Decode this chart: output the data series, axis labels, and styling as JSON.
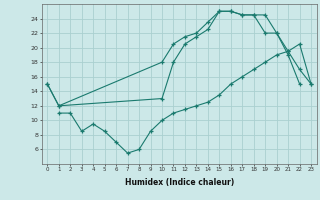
{
  "xlabel": "Humidex (Indice chaleur)",
  "line_color": "#1a7a6e",
  "bg_color": "#cce8e8",
  "grid_color": "#aad0d0",
  "xlim": [
    -0.5,
    23.5
  ],
  "ylim": [
    4,
    26
  ],
  "xticks": [
    0,
    1,
    2,
    3,
    4,
    5,
    6,
    7,
    8,
    9,
    10,
    11,
    12,
    13,
    14,
    15,
    16,
    17,
    18,
    19,
    20,
    21,
    22,
    23
  ],
  "yticks": [
    6,
    8,
    10,
    12,
    14,
    16,
    18,
    20,
    22,
    24
  ],
  "line1_x": [
    0,
    1,
    10,
    11,
    12,
    13,
    14,
    15,
    16,
    17,
    18,
    19,
    20,
    21,
    22
  ],
  "line1_y": [
    15,
    12,
    18,
    20.5,
    21.5,
    22,
    23.5,
    25,
    25,
    24.5,
    24.5,
    24.5,
    22,
    19,
    15
  ],
  "line2_x": [
    1,
    2,
    3,
    4,
    5,
    6,
    7,
    8,
    9,
    10,
    11,
    12,
    13,
    14,
    15,
    16,
    17,
    18,
    19,
    20,
    21,
    22,
    23
  ],
  "line2_y": [
    11,
    11,
    8.5,
    9.5,
    8.5,
    7,
    5.5,
    6,
    8.5,
    10,
    11,
    11.5,
    12,
    12.5,
    13.5,
    15,
    16,
    17,
    18,
    19,
    19.5,
    20.5,
    15
  ],
  "line3_x": [
    0,
    1,
    10,
    11,
    12,
    13,
    14,
    15,
    16,
    17,
    18,
    19,
    20,
    21,
    22,
    23
  ],
  "line3_y": [
    15,
    12,
    13,
    18,
    20.5,
    21.5,
    22.5,
    25,
    25,
    24.5,
    24.5,
    22,
    22,
    19.5,
    17,
    15
  ]
}
